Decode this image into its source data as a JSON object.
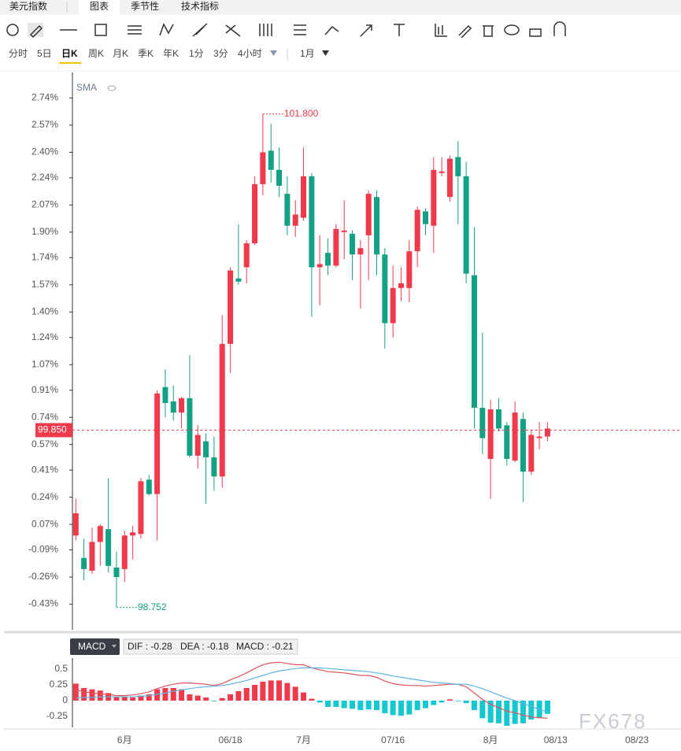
{
  "tabs": [
    "美元指数",
    "图表",
    "季节性",
    "技术指标"
  ],
  "periods": [
    "分时",
    "5日",
    "日K",
    "周K",
    "月K",
    "季K",
    "年K",
    "1分",
    "3分",
    "4小时"
  ],
  "range": "1月",
  "watermark": "FX678",
  "chart_data": [
    {
      "type": "candlestick",
      "indicator": "SMA",
      "categories": [
        null,
        null,
        null,
        null,
        null,
        null,
        "6月",
        null,
        null,
        null,
        null,
        null,
        null,
        null,
        null,
        null,
        null,
        null,
        null,
        "06/18",
        null,
        null,
        null,
        null,
        null,
        null,
        null,
        null,
        "7月",
        null,
        null,
        null,
        null,
        null,
        null,
        null,
        null,
        null,
        null,
        "07/16",
        null,
        null,
        null,
        null,
        null,
        null,
        null,
        null,
        null,
        null,
        null,
        "8月",
        null,
        null,
        null,
        null,
        null,
        null,
        null,
        "08/13",
        null,
        null,
        null,
        null,
        null,
        null,
        null,
        null,
        null,
        "08/23",
        null
      ],
      "open": [
        0.0,
        -0.14,
        -0.22,
        -0.04,
        0.04,
        -0.2,
        -0.21,
        0.0,
        0.01,
        0.35,
        0.26,
        0.93,
        0.84,
        0.77,
        0.86,
        0.5,
        0.59,
        0.49,
        0.37,
        1.2,
        1.61,
        1.68,
        1.83,
        2.2,
        2.41,
        2.29,
        2.14,
        1.94,
        1.99,
        2.25,
        1.68,
        1.77,
        1.69,
        1.9,
        1.89,
        1.76,
        1.88,
        2.12,
        1.76,
        1.33,
        1.55,
        1.55,
        1.78,
        2.03,
        1.94,
        2.27,
        2.12,
        2.37,
        2.25,
        1.63,
        0.8,
        0.48,
        0.79,
        0.69,
        0.47,
        0.73,
        0.4,
        0.61,
        0.62,
        null,
        null,
        null,
        null,
        null,
        null,
        null,
        null,
        null,
        null,
        null,
        null
      ],
      "high": [
        0.23,
        -0.02,
        0.05,
        0.07,
        0.36,
        -0.1,
        0.03,
        0.06,
        0.36,
        0.38,
        0.91,
        1.04,
        0.94,
        0.87,
        1.13,
        0.69,
        0.64,
        0.62,
        1.38,
        1.68,
        1.95,
        1.85,
        2.25,
        2.64,
        2.58,
        2.43,
        2.25,
        2.1,
        2.43,
        2.27,
        1.88,
        1.86,
        1.95,
        2.1,
        1.91,
        1.85,
        2.16,
        2.16,
        1.8,
        1.69,
        1.68,
        1.85,
        2.06,
        2.05,
        2.37,
        2.37,
        2.38,
        2.47,
        2.34,
        1.93,
        1.27,
        0.85,
        0.86,
        0.71,
        0.84,
        0.77,
        0.66,
        0.71,
        0.71,
        null,
        null,
        null,
        null,
        null,
        null,
        null,
        null,
        null,
        null,
        null,
        null
      ],
      "low": [
        -0.03,
        -0.28,
        -0.24,
        -0.19,
        -0.23,
        -0.45,
        -0.29,
        -0.15,
        -0.02,
        0.25,
        -0.03,
        0.74,
        0.72,
        0.67,
        0.49,
        0.42,
        0.2,
        0.28,
        0.3,
        1.02,
        1.57,
        1.58,
        1.82,
        2.13,
        2.21,
        2.12,
        1.88,
        1.87,
        1.97,
        1.37,
        1.44,
        1.63,
        1.68,
        1.73,
        1.6,
        1.42,
        1.6,
        1.63,
        1.17,
        1.24,
        1.47,
        1.46,
        1.68,
        1.88,
        1.77,
        2.25,
        2.09,
        1.95,
        1.58,
        0.67,
        0.51,
        0.23,
        0.65,
        0.44,
        0.46,
        0.21,
        0.38,
        0.54,
        0.59,
        null,
        null,
        null,
        null,
        null,
        null,
        null,
        null,
        null,
        null,
        null,
        null
      ],
      "close": [
        0.14,
        -0.21,
        -0.04,
        0.06,
        -0.19,
        -0.26,
        0.0,
        0.02,
        0.34,
        0.26,
        0.89,
        0.83,
        0.77,
        0.86,
        0.5,
        0.63,
        0.49,
        0.37,
        1.2,
        1.66,
        1.59,
        1.83,
        2.2,
        2.4,
        2.29,
        2.19,
        1.94,
        2.01,
        2.25,
        1.68,
        1.7,
        1.69,
        1.92,
        1.91,
        1.76,
        1.8,
        2.14,
        1.76,
        1.33,
        1.55,
        1.58,
        1.78,
        2.04,
        1.95,
        2.29,
        2.28,
        2.36,
        2.25,
        1.64,
        0.8,
        0.61,
        0.79,
        0.67,
        0.48,
        0.77,
        0.4,
        0.63,
        0.62,
        0.67,
        null,
        null,
        null,
        null,
        null,
        null,
        null,
        null,
        null,
        null,
        null,
        null
      ],
      "up_color": "#f0394a",
      "down_color": "#13a185",
      "ylim": [
        -0.59,
        2.9
      ],
      "yticks": [
        {
          "value": 2.74,
          "label": "2.74%"
        },
        {
          "value": 2.57,
          "label": "2.57%"
        },
        {
          "value": 2.4,
          "label": "2.40%"
        },
        {
          "value": 2.24,
          "label": "2.24%"
        },
        {
          "value": 2.07,
          "label": "2.07%"
        },
        {
          "value": 1.9,
          "label": "1.90%"
        },
        {
          "value": 1.74,
          "label": "1.74%"
        },
        {
          "value": 1.57,
          "label": "1.57%"
        },
        {
          "value": 1.4,
          "label": "1.40%"
        },
        {
          "value": 1.24,
          "label": "1.24%"
        },
        {
          "value": 1.07,
          "label": "1.07%"
        },
        {
          "value": 0.91,
          "label": "0.91%"
        },
        {
          "value": 0.74,
          "label": "0.74%"
        },
        {
          "value": 0.57,
          "label": "0.57%"
        },
        {
          "value": 0.41,
          "label": "0.41%"
        },
        {
          "value": 0.24,
          "label": "0.24%"
        },
        {
          "value": 0.07,
          "label": "0.07%"
        },
        {
          "value": -0.09,
          "label": "-0.09%"
        },
        {
          "value": -0.26,
          "label": "-0.26%"
        },
        {
          "value": -0.43,
          "label": "-0.43%"
        }
      ],
      "annotations": [
        {
          "label": "101.800",
          "value": 2.64,
          "index": 23,
          "color": "#f0394a"
        },
        {
          "label": "98.752",
          "value": -0.45,
          "index": 5,
          "color": "#13a185"
        }
      ],
      "last_price": {
        "label": "99.850",
        "value": 0.66,
        "color": "#f0394a"
      }
    },
    {
      "type": "macd",
      "title": "MACD",
      "legend": [
        "DIF : -0.28",
        "DEA : -0.18",
        "MACD : -0.21"
      ],
      "series": [
        {
          "style": "bar",
          "up_color": "#f0394a",
          "down_color": "#14c8d0",
          "values": [
            0.27,
            0.2,
            0.18,
            0.16,
            0.12,
            0.06,
            0.06,
            0.05,
            0.08,
            0.1,
            0.18,
            0.2,
            0.2,
            0.18,
            0.1,
            0.08,
            0.05,
            -0.01,
            0.04,
            0.1,
            0.15,
            0.2,
            0.25,
            0.3,
            0.32,
            0.32,
            0.28,
            0.22,
            0.13,
            0.03,
            -0.03,
            -0.1,
            -0.1,
            -0.12,
            -0.13,
            -0.15,
            -0.14,
            -0.15,
            -0.2,
            -0.23,
            -0.24,
            -0.22,
            -0.15,
            -0.12,
            -0.07,
            -0.03,
            0.02,
            -0.01,
            -0.04,
            -0.15,
            -0.28,
            -0.35,
            -0.36,
            -0.4,
            -0.37,
            -0.36,
            -0.3,
            -0.28,
            -0.21,
            null,
            null,
            null,
            null,
            null,
            null,
            null,
            null,
            null,
            null,
            null,
            null
          ]
        },
        {
          "style": "line",
          "color": "#e0545c",
          "values": [
            0.17,
            0.14,
            0.12,
            0.11,
            0.1,
            0.08,
            0.08,
            0.09,
            0.11,
            0.14,
            0.19,
            0.23,
            0.26,
            0.28,
            0.28,
            0.27,
            0.26,
            0.24,
            0.27,
            0.33,
            0.38,
            0.44,
            0.51,
            0.57,
            0.6,
            0.61,
            0.59,
            0.57,
            0.57,
            0.52,
            0.49,
            0.46,
            0.45,
            0.44,
            0.42,
            0.4,
            0.4,
            0.37,
            0.31,
            0.27,
            0.25,
            0.24,
            0.24,
            0.23,
            0.24,
            0.25,
            0.26,
            0.26,
            0.22,
            0.12,
            0.02,
            -0.06,
            -0.11,
            -0.17,
            -0.19,
            -0.23,
            -0.26,
            -0.27,
            -0.28,
            null,
            null,
            null,
            null,
            null,
            null,
            null,
            null,
            null,
            null,
            null,
            null
          ]
        },
        {
          "style": "line",
          "color": "#5ab4e0",
          "values": [
            0.04,
            0.05,
            0.05,
            0.06,
            0.06,
            0.06,
            0.06,
            0.06,
            0.07,
            0.08,
            0.1,
            0.12,
            0.15,
            0.17,
            0.19,
            0.21,
            0.22,
            0.23,
            0.24,
            0.26,
            0.29,
            0.32,
            0.36,
            0.4,
            0.44,
            0.47,
            0.49,
            0.51,
            0.52,
            0.52,
            0.52,
            0.51,
            0.5,
            0.49,
            0.48,
            0.47,
            0.46,
            0.44,
            0.42,
            0.39,
            0.37,
            0.35,
            0.33,
            0.31,
            0.29,
            0.28,
            0.27,
            0.26,
            0.26,
            0.23,
            0.19,
            0.14,
            0.09,
            0.04,
            0.0,
            -0.05,
            -0.09,
            -0.14,
            -0.18,
            null,
            null,
            null,
            null,
            null,
            null,
            null,
            null,
            null,
            null,
            null,
            null
          ]
        }
      ],
      "ylim": [
        -0.8,
        0.675
      ],
      "yticks": [
        0.5,
        0.25,
        0,
        -0.25
      ]
    }
  ]
}
